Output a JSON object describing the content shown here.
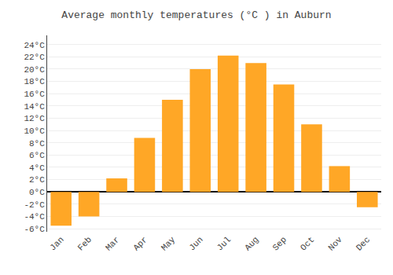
{
  "chart_data": {
    "type": "bar",
    "title": "Average monthly temperatures (°C ) in Auburn",
    "categories": [
      "Jan",
      "Feb",
      "Mar",
      "Apr",
      "May",
      "Jun",
      "Jul",
      "Aug",
      "Sep",
      "Oct",
      "Nov",
      "Dec"
    ],
    "values": [
      -5.5,
      -4.0,
      2.2,
      8.8,
      15.0,
      20.0,
      22.2,
      21.0,
      17.5,
      11.0,
      4.2,
      -2.5
    ],
    "color": "#FFA726",
    "ylim": [
      -6.5,
      25.5
    ],
    "yticks": [
      {
        "value": -6,
        "label": "-6°C"
      },
      {
        "value": -4,
        "label": "-4°C"
      },
      {
        "value": -2,
        "label": "-2°C"
      },
      {
        "value": 0,
        "label": "0°C"
      },
      {
        "value": 2,
        "label": "2°C"
      },
      {
        "value": 4,
        "label": "4°C"
      },
      {
        "value": 6,
        "label": "6°C"
      },
      {
        "value": 8,
        "label": "8°C"
      },
      {
        "value": 10,
        "label": "10°C"
      },
      {
        "value": 12,
        "label": "12°C"
      },
      {
        "value": 14,
        "label": "14°C"
      },
      {
        "value": 16,
        "label": "16°C"
      },
      {
        "value": 18,
        "label": "18°C"
      },
      {
        "value": 20,
        "label": "20°C"
      },
      {
        "value": 22,
        "label": "22°C"
      },
      {
        "value": 24,
        "label": "24°C"
      }
    ],
    "grid": true
  }
}
